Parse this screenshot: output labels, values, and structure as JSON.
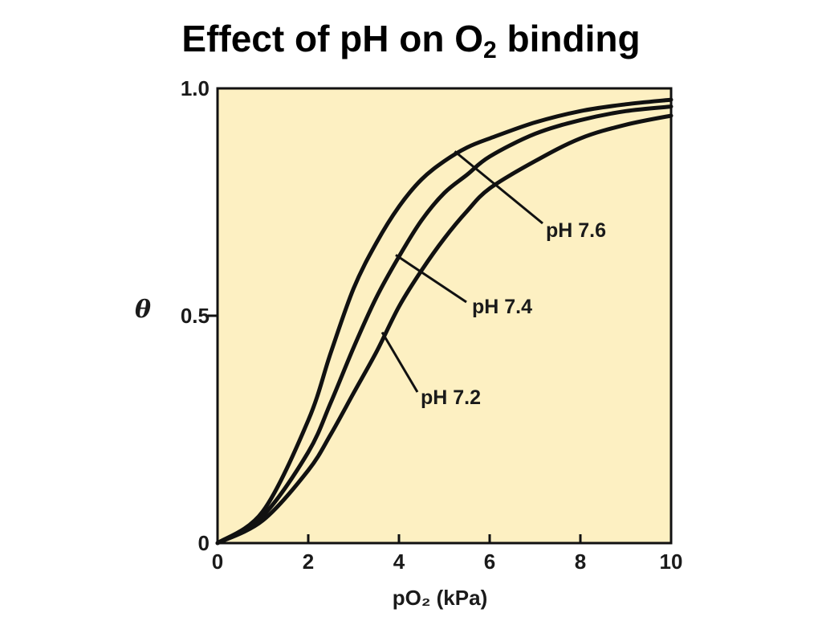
{
  "title": {
    "main": "Effect of pH on O",
    "subscript": "2",
    "suffix": " binding"
  },
  "chart_data": {
    "type": "line",
    "xlabel": "pO₂ (kPa)",
    "ylabel": "θ",
    "xlim": [
      0,
      10
    ],
    "ylim": [
      0,
      1.0
    ],
    "x_ticks": [
      "0",
      "2",
      "4",
      "6",
      "8",
      "10"
    ],
    "y_ticks": [
      "0",
      "0.5",
      "1.0"
    ],
    "grid": false,
    "background": "#fdf0c2",
    "line_color": "#111111",
    "series": [
      {
        "name": "pH 7.6",
        "x": [
          0,
          1,
          2,
          2.5,
          3,
          3.5,
          4,
          4.5,
          5,
          5.5,
          6,
          7,
          8,
          9,
          10
        ],
        "y": [
          0,
          0.07,
          0.27,
          0.42,
          0.56,
          0.66,
          0.74,
          0.8,
          0.84,
          0.87,
          0.89,
          0.925,
          0.95,
          0.965,
          0.975
        ]
      },
      {
        "name": "pH 7.4",
        "x": [
          0,
          1,
          2,
          2.5,
          3,
          3.5,
          4,
          4.5,
          5,
          5.5,
          6,
          7,
          8,
          9,
          10
        ],
        "y": [
          0,
          0.06,
          0.2,
          0.31,
          0.43,
          0.54,
          0.63,
          0.71,
          0.77,
          0.81,
          0.85,
          0.9,
          0.93,
          0.95,
          0.96
        ]
      },
      {
        "name": "pH 7.2",
        "x": [
          0,
          1,
          2,
          2.5,
          3,
          3.5,
          4,
          4.5,
          5,
          5.5,
          6,
          7,
          8,
          9,
          10
        ],
        "y": [
          0,
          0.05,
          0.16,
          0.24,
          0.33,
          0.42,
          0.52,
          0.6,
          0.67,
          0.73,
          0.78,
          0.84,
          0.89,
          0.92,
          0.94
        ]
      }
    ],
    "annotations": [
      {
        "text": "pH 7.6",
        "series": "pH 7.6",
        "point_x": 5.3
      },
      {
        "text": "pH 7.4",
        "series": "pH 7.4",
        "point_x": 4.0
      },
      {
        "text": "pH 7.2",
        "series": "pH 7.2",
        "point_x": 3.7
      }
    ]
  }
}
